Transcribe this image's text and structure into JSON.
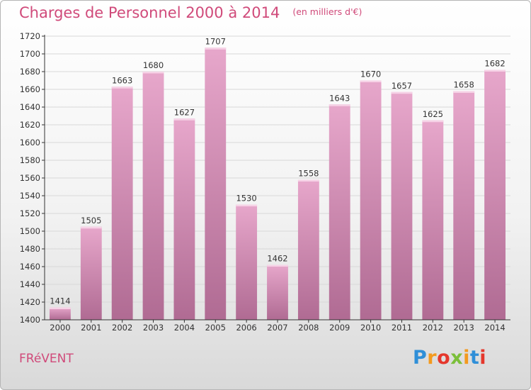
{
  "title": "Charges de Personnel 2000 à 2014",
  "subtitle": "(en milliers d'€)",
  "location": "FRéVENT",
  "logo": {
    "letters": [
      "P",
      "r",
      "o",
      "x",
      "i",
      "t",
      "i"
    ],
    "colors": [
      "#2f8fd8",
      "#f39a1e",
      "#e5372c",
      "#7bbf3a",
      "#f39a1e",
      "#2f8fd8",
      "#e5372c"
    ]
  },
  "colors": {
    "bar_top": "#e7a7cb",
    "bar_bottom": "#b06b93",
    "accent": "#d04a7a",
    "grid": "#d8d8d8",
    "axis": "#333333"
  },
  "chart_data": {
    "type": "bar",
    "categories": [
      "2000",
      "2001",
      "2002",
      "2003",
      "2004",
      "2005",
      "2006",
      "2007",
      "2008",
      "2009",
      "2010",
      "2011",
      "2012",
      "2013",
      "2014"
    ],
    "values": [
      1414,
      1505,
      1663,
      1680,
      1627,
      1707,
      1530,
      1462,
      1558,
      1643,
      1670,
      1657,
      1625,
      1658,
      1682
    ],
    "title": "Charges de Personnel 2000 à 2014",
    "ylim": [
      1400,
      1720
    ],
    "yticks": [
      1400,
      1420,
      1440,
      1460,
      1480,
      1500,
      1520,
      1540,
      1560,
      1580,
      1600,
      1620,
      1640,
      1660,
      1680,
      1700,
      1720
    ],
    "grid": true,
    "legend": "none"
  }
}
